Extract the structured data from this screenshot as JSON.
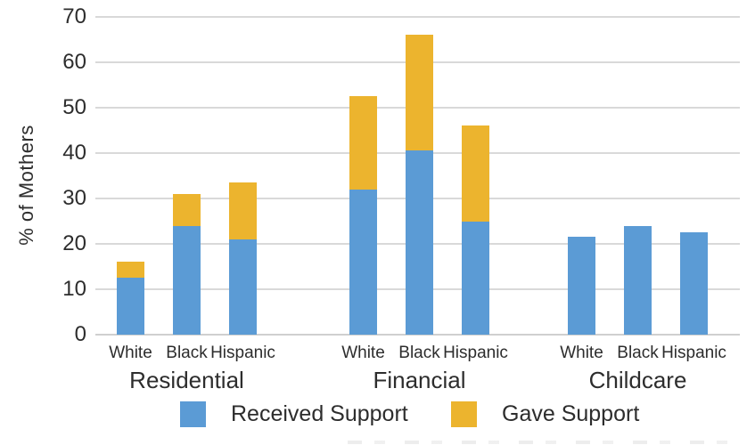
{
  "chart_data": {
    "type": "bar",
    "stacked": true,
    "title": "",
    "xlabel": "",
    "ylabel": "% of Mothers",
    "ylim": [
      0,
      70
    ],
    "yticks": [
      0,
      10,
      20,
      30,
      40,
      50,
      60,
      70
    ],
    "grid": "horizontal",
    "legend_position": "bottom",
    "legend": [
      {
        "label": "Received Support",
        "color": "#5B9BD5"
      },
      {
        "label": "Gave Support",
        "color": "#ECB42E"
      }
    ],
    "groups": [
      {
        "label": "Residential",
        "bars": [
          {
            "category": "White",
            "received": 12.5,
            "gave": 3.5,
            "total": 16
          },
          {
            "category": "Black",
            "received": 24,
            "gave": 7,
            "total": 31
          },
          {
            "category": "Hispanic",
            "received": 21,
            "gave": 12.5,
            "total": 33.5
          }
        ]
      },
      {
        "label": "Financial",
        "bars": [
          {
            "category": "White",
            "received": 32,
            "gave": 20.5,
            "total": 52.5
          },
          {
            "category": "Black",
            "received": 40.5,
            "gave": 25.5,
            "total": 66
          },
          {
            "category": "Hispanic",
            "received": 25,
            "gave": 21,
            "total": 46
          }
        ]
      },
      {
        "label": "Childcare",
        "bars": [
          {
            "category": "White",
            "received": 21.5,
            "gave": 0,
            "total": 21.5
          },
          {
            "category": "Black",
            "received": 24,
            "gave": 0,
            "total": 24
          },
          {
            "category": "Hispanic",
            "received": 22.5,
            "gave": 0,
            "total": 22.5
          }
        ]
      }
    ],
    "colors": {
      "received": "#5B9BD5",
      "gave": "#ECB42E",
      "gridline": "#D9D9D9",
      "text": "#2D2D2D"
    }
  }
}
